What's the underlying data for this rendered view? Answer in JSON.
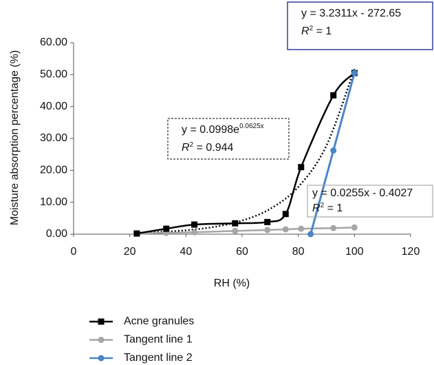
{
  "chart_data": {
    "type": "line",
    "x_label": "RH (%)",
    "y_label": "Moisture absorption percentage (%)",
    "xlim": [
      0,
      120
    ],
    "xticks": [
      0,
      20,
      40,
      60,
      80,
      100,
      120
    ],
    "ylim": [
      0,
      60
    ],
    "yticks": [
      {
        "value": 0,
        "label": "0.00"
      },
      {
        "value": 10,
        "label": "10.00"
      },
      {
        "value": 20,
        "label": "20.00"
      },
      {
        "value": 30,
        "label": "30.00"
      },
      {
        "value": 40,
        "label": "40.00"
      },
      {
        "value": 50,
        "label": "50.00"
      },
      {
        "value": 60,
        "label": "60.00"
      }
    ],
    "series": [
      {
        "name": "Acne granules",
        "color": "#000000",
        "marker": "square",
        "x": [
          22.5,
          33,
          43,
          57.5,
          69,
          75.5,
          81,
          92.5,
          100
        ],
        "values": [
          0.2,
          1.7,
          3.0,
          3.4,
          3.8,
          6.3,
          21,
          43.5,
          50.5
        ]
      },
      {
        "name": "Tangent line 1",
        "color": "#a6a6a6",
        "marker": "circle",
        "x": [
          22.5,
          33,
          43,
          57.5,
          69,
          75.5,
          81,
          92.5,
          100
        ],
        "values": [
          0.2,
          0.4,
          0.6,
          1.0,
          1.3,
          1.5,
          1.7,
          1.9,
          2.1
        ]
      },
      {
        "name": "Tangent line 2",
        "color": "#4a86c8",
        "marker": "circle",
        "x": [
          84.4,
          92.5,
          100
        ],
        "values": [
          0,
          26.2,
          50.5
        ]
      }
    ],
    "trendline": {
      "color": "#000000",
      "style": "dotted",
      "x": [
        22.5,
        30,
        40,
        50,
        60,
        70,
        80,
        90,
        100
      ],
      "values": [
        0.41,
        0.65,
        1.21,
        2.27,
        4.24,
        7.93,
        14.8,
        27.7,
        51.8
      ]
    },
    "annotations": [
      {
        "lines": [
          "y = 3.2311x - 272.65"
        ],
        "r_label": "R",
        "r_sup": "2",
        "r_value": " = 1",
        "border": "#2e3f9e",
        "style": "solid"
      },
      {
        "lines": [
          "y = 0.0998e"
        ],
        "sup": "0.0625x",
        "r_label": "R",
        "r_sup": "2",
        "r_value": " = 0.944",
        "border": "#000000",
        "style": "dashed"
      },
      {
        "lines": [
          "y = 0.0255x - 0.4027"
        ],
        "r_label": "R",
        "r_sup": "2",
        "r_value": " = 1",
        "border": "#999999",
        "style": "solid"
      }
    ],
    "legend": "bottom-left"
  }
}
